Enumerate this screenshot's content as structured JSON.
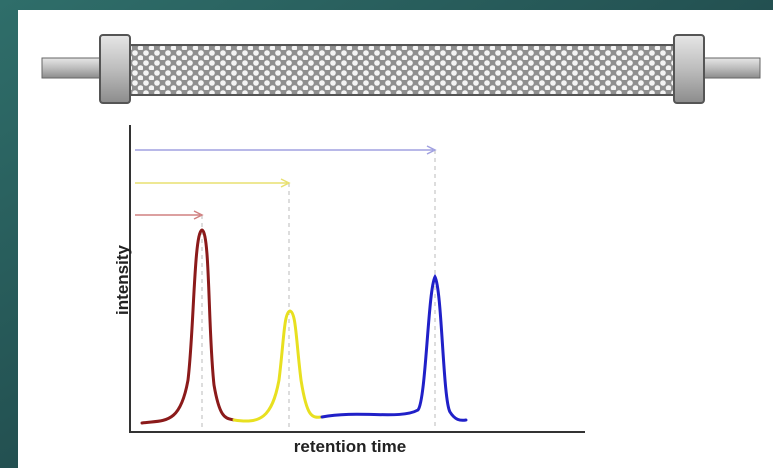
{
  "axes": {
    "y_label": "intensity",
    "x_label": "retention time"
  }
}
